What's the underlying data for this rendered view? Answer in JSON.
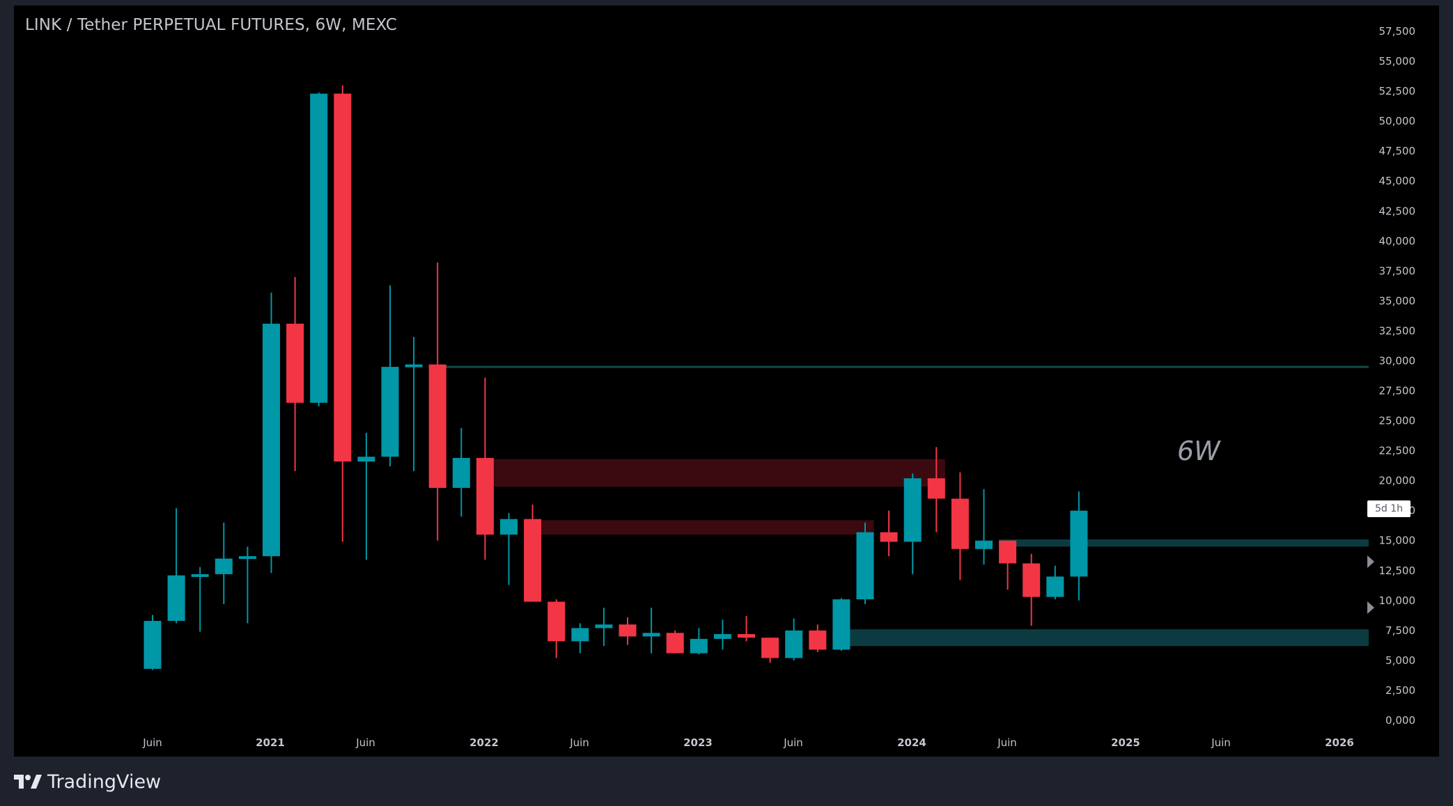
{
  "header": {
    "title": "LINK / Tether PERPETUAL FUTURES, 6W, MEXC"
  },
  "annotation": {
    "label": "6W"
  },
  "countdown": {
    "label": "5d 1h"
  },
  "footer": {
    "brand": "TradingView",
    "logo_icon": "tradingview-logo-icon"
  },
  "colors": {
    "background": "#000000",
    "frame": "#1e222d",
    "up": "#0097a7",
    "down": "#f23645",
    "supply_zone": "#3a0a10",
    "demand_zone": "#0b3b40",
    "resistance_line": "#0f4d47",
    "text": "#c3c6ce"
  },
  "chart_data": {
    "type": "candlestick",
    "title": "LINK / Tether PERPETUAL FUTURES, 6W, MEXC",
    "ylim": [
      -2500,
      57500
    ],
    "y_ticks": [
      "57,500",
      "55,000",
      "52,500",
      "50,000",
      "47,500",
      "45,000",
      "42,500",
      "40,000",
      "37,500",
      "35,000",
      "32,500",
      "30,000",
      "27,500",
      "25,000",
      "22,500",
      "20,000",
      "17,500",
      "15,000",
      "12,500",
      "10,000",
      "7,500",
      "5,000",
      "2,500",
      "0,000"
    ],
    "x_ticks": [
      {
        "label": "Juin",
        "date": "2020-06",
        "year": false
      },
      {
        "label": "2021",
        "date": "2021-01",
        "year": true
      },
      {
        "label": "Juin",
        "date": "2021-06",
        "year": false
      },
      {
        "label": "2022",
        "date": "2022-01",
        "year": true
      },
      {
        "label": "Juin",
        "date": "2022-06",
        "year": false
      },
      {
        "label": "2023",
        "date": "2023-01",
        "year": true
      },
      {
        "label": "Juin",
        "date": "2023-06",
        "year": false
      },
      {
        "label": "2024",
        "date": "2024-01",
        "year": true
      },
      {
        "label": "Juin",
        "date": "2024-06",
        "year": false
      },
      {
        "label": "2025",
        "date": "2025-01",
        "year": true
      },
      {
        "label": "Juin",
        "date": "2025-06",
        "year": false
      },
      {
        "label": "2026",
        "date": "2026-01",
        "year": true
      }
    ],
    "candles": [
      {
        "o": 4300,
        "h": 8800,
        "l": 4200,
        "c": 8300
      },
      {
        "o": 8300,
        "h": 17700,
        "l": 8100,
        "c": 12100
      },
      {
        "o": 12100,
        "h": 12800,
        "l": 7400,
        "c": 12200
      },
      {
        "o": 12200,
        "h": 16500,
        "l": 9700,
        "c": 13500
      },
      {
        "o": 13500,
        "h": 14500,
        "l": 8100,
        "c": 13700
      },
      {
        "o": 13700,
        "h": 35700,
        "l": 12300,
        "c": 33100
      },
      {
        "o": 33100,
        "h": 37000,
        "l": 20800,
        "c": 26500
      },
      {
        "o": 26500,
        "h": 52400,
        "l": 26200,
        "c": 52300
      },
      {
        "o": 52300,
        "h": 53000,
        "l": 14900,
        "c": 21600
      },
      {
        "o": 21600,
        "h": 24000,
        "l": 13400,
        "c": 22000
      },
      {
        "o": 22000,
        "h": 36300,
        "l": 21200,
        "c": 29500
      },
      {
        "o": 29500,
        "h": 32000,
        "l": 20800,
        "c": 29700
      },
      {
        "o": 29700,
        "h": 38200,
        "l": 15000,
        "c": 19400
      },
      {
        "o": 19400,
        "h": 24400,
        "l": 17000,
        "c": 21900
      },
      {
        "o": 21900,
        "h": 28600,
        "l": 13400,
        "c": 15500
      },
      {
        "o": 15500,
        "h": 17300,
        "l": 11300,
        "c": 16800
      },
      {
        "o": 16800,
        "h": 18000,
        "l": 9900,
        "c": 9900
      },
      {
        "o": 9900,
        "h": 10100,
        "l": 5200,
        "c": 6600
      },
      {
        "o": 6600,
        "h": 8100,
        "l": 5600,
        "c": 7700
      },
      {
        "o": 7700,
        "h": 9400,
        "l": 6200,
        "c": 8000
      },
      {
        "o": 8000,
        "h": 8600,
        "l": 6300,
        "c": 7000
      },
      {
        "o": 7000,
        "h": 9400,
        "l": 5600,
        "c": 7300
      },
      {
        "o": 7300,
        "h": 7500,
        "l": 5600,
        "c": 5600
      },
      {
        "o": 5600,
        "h": 7700,
        "l": 5500,
        "c": 6800
      },
      {
        "o": 6800,
        "h": 8400,
        "l": 5900,
        "c": 7200
      },
      {
        "o": 7200,
        "h": 8700,
        "l": 6600,
        "c": 6900
      },
      {
        "o": 6900,
        "h": 6900,
        "l": 4800,
        "c": 5200
      },
      {
        "o": 5200,
        "h": 8500,
        "l": 5000,
        "c": 7500
      },
      {
        "o": 7500,
        "h": 8000,
        "l": 5700,
        "c": 5900
      },
      {
        "o": 5900,
        "h": 10200,
        "l": 5800,
        "c": 10100
      },
      {
        "o": 10100,
        "h": 16500,
        "l": 9700,
        "c": 15700
      },
      {
        "o": 15700,
        "h": 17500,
        "l": 13700,
        "c": 14900
      },
      {
        "o": 14900,
        "h": 20600,
        "l": 12200,
        "c": 20200
      },
      {
        "o": 20200,
        "h": 22800,
        "l": 15700,
        "c": 18500
      },
      {
        "o": 18500,
        "h": 20700,
        "l": 11700,
        "c": 14300
      },
      {
        "o": 14300,
        "h": 19300,
        "l": 13000,
        "c": 15000
      },
      {
        "o": 15000,
        "h": 15000,
        "l": 10900,
        "c": 13100
      },
      {
        "o": 13100,
        "h": 13900,
        "l": 7900,
        "c": 10300
      },
      {
        "o": 10300,
        "h": 12900,
        "l": 10100,
        "c": 12000
      },
      {
        "o": 12000,
        "h": 19100,
        "l": 10000,
        "c": 17500
      }
    ],
    "zones": [
      {
        "kind": "supply",
        "from_index": 14,
        "to_index": 33,
        "low": 19500,
        "high": 21800
      },
      {
        "kind": "supply",
        "from_index": 16,
        "to_index": 30,
        "low": 15500,
        "high": 16700
      },
      {
        "kind": "demand",
        "from_index": 36,
        "to_index": "end",
        "low": 14500,
        "high": 15100
      },
      {
        "kind": "demand",
        "from_index": 29,
        "to_index": "end",
        "low": 6200,
        "high": 7600
      }
    ],
    "lines": [
      {
        "kind": "resistance",
        "from_index": 12,
        "to_index": "end",
        "value": 29500
      }
    ]
  }
}
